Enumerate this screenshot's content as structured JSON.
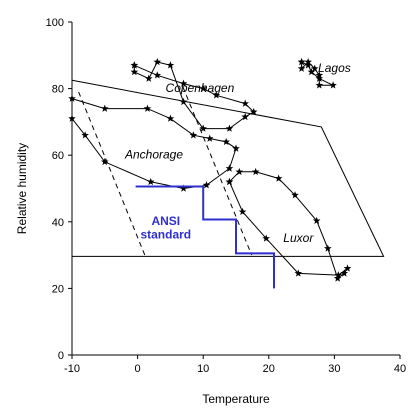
{
  "chart_data": {
    "type": "line",
    "title": "",
    "xlabel": "Temperature",
    "ylabel": "Relative humidity",
    "xlim": [
      -10,
      40
    ],
    "ylim": [
      0,
      100
    ],
    "xticks": [
      -10,
      0,
      10,
      20,
      30,
      40
    ],
    "yticks": [
      0,
      20,
      40,
      60,
      80,
      100
    ],
    "grid": false,
    "legend": "none",
    "series": [
      {
        "name": "Copenhagen",
        "marker": "star",
        "color": "#000000",
        "x": [
          -0.5,
          -0.5,
          1.7,
          3,
          5,
          7,
          10,
          14,
          16.4,
          17.7,
          16.4,
          12,
          10,
          7,
          3,
          -0.5
        ],
        "y": [
          87,
          85,
          83,
          88,
          87,
          76,
          68,
          68,
          71.5,
          73,
          75.5,
          78,
          80,
          81.5,
          84,
          87
        ]
      },
      {
        "name": "Lagos",
        "marker": "star",
        "color": "#000000",
        "x": [
          25,
          25,
          26,
          27,
          27.7,
          27.7,
          29.8,
          27.7,
          26.5,
          26,
          25
        ],
        "y": [
          88,
          86,
          88,
          86,
          84,
          81,
          81,
          83,
          85,
          87,
          88
        ]
      },
      {
        "name": "Anchorage",
        "marker": "star",
        "color": "#000000",
        "x": [
          -10,
          -8,
          -5,
          2,
          7,
          10.5,
          14,
          15,
          13.5,
          11,
          8.5,
          5,
          1.5,
          -5,
          -10
        ],
        "y": [
          71,
          66,
          58,
          52,
          50,
          51,
          56,
          62,
          64,
          65,
          66,
          71,
          74,
          74,
          77
        ]
      },
      {
        "name": "Luxor",
        "marker": "star",
        "color": "#000000",
        "x": [
          14,
          16,
          19.6,
          24.5,
          30.6,
          32,
          31.5,
          30.5,
          29,
          27.3,
          24,
          21.5,
          18,
          15.5,
          14
        ],
        "y": [
          52,
          43,
          35,
          24.5,
          24,
          26,
          24.5,
          23,
          32,
          40.3,
          48,
          53,
          55,
          55,
          52
        ]
      }
    ],
    "comfort_zone": {
      "x": [
        -10,
        28,
        37.5,
        -10
      ],
      "y": [
        82.5,
        68.5,
        29.6,
        29.6
      ],
      "color": "#000000"
    },
    "dashed_lines": [
      {
        "x": [
          -9,
          1.1
        ],
        "y": [
          79,
          30
        ],
        "style": "dashed"
      },
      {
        "x": [
          6.9,
          17.4
        ],
        "y": [
          80.5,
          30
        ],
        "style": "dashed"
      }
    ],
    "ansi_standard": {
      "x": [
        -0.3,
        10,
        10,
        15,
        15,
        20.8,
        20.8
      ],
      "y": [
        50.6,
        50.6,
        40.7,
        40.7,
        30.5,
        30.5,
        20
      ],
      "color": "#2f2fd0"
    },
    "annotations": [
      {
        "text": "Copenhagen",
        "x": 9.5,
        "y": 79,
        "style": "italic"
      },
      {
        "text": "Lagos",
        "x": 30,
        "y": 85,
        "style": "italic"
      },
      {
        "text": "Anchorage",
        "x": 2.5,
        "y": 59,
        "style": "italic"
      },
      {
        "text": "Luxor",
        "x": 24.5,
        "y": 34,
        "style": "italic"
      },
      {
        "text": "ANSI",
        "x": 4.3,
        "y": 39,
        "style": "bold"
      },
      {
        "text": "standard",
        "x": 4.3,
        "y": 35,
        "style": "bold"
      }
    ]
  }
}
